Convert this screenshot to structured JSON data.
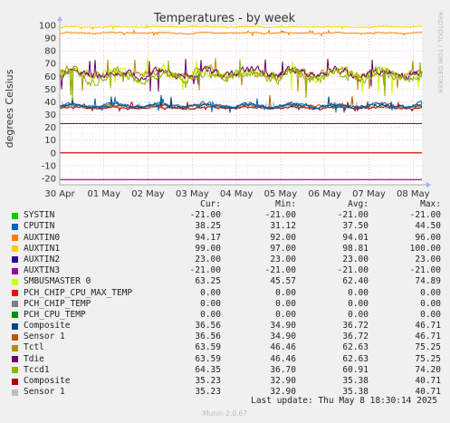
{
  "chart_data": {
    "type": "line",
    "title": "Temperatures - by week",
    "ylabel": "degrees Celsius",
    "side_label": "RRDTOOL / TOBI OETIKER",
    "ylim": [
      -25,
      100
    ],
    "yticks": [
      "-20",
      "-10",
      "0",
      "10",
      "20",
      "30",
      "40",
      "50",
      "60",
      "70",
      "80",
      "90",
      "100"
    ],
    "xticks": [
      "30 Apr",
      "01 May",
      "02 May",
      "03 May",
      "04 May",
      "05 May",
      "06 May",
      "07 May",
      "08 May"
    ],
    "grid": true,
    "series": [
      {
        "name": "SYSTIN",
        "color": "#00cc00",
        "cur": "-21.00",
        "min": "-21.00",
        "avg": "-21.00",
        "max": "-21.00"
      },
      {
        "name": "CPUTIN",
        "color": "#0066b3",
        "cur": "38.25",
        "min": "31.12",
        "avg": "37.50",
        "max": "44.50"
      },
      {
        "name": "AUXTIN0",
        "color": "#ff8000",
        "cur": "94.17",
        "min": "92.00",
        "avg": "94.01",
        "max": "96.00"
      },
      {
        "name": "AUXTIN1",
        "color": "#ffcc00",
        "cur": "99.00",
        "min": "97.00",
        "avg": "98.81",
        "max": "100.00"
      },
      {
        "name": "AUXTIN2",
        "color": "#330099",
        "cur": "23.00",
        "min": "23.00",
        "avg": "23.00",
        "max": "23.00"
      },
      {
        "name": "AUXTIN3",
        "color": "#990099",
        "cur": "-21.00",
        "min": "-21.00",
        "avg": "-21.00",
        "max": "-21.00"
      },
      {
        "name": "SMBUSMASTER 0",
        "color": "#ccff00",
        "cur": "63.25",
        "min": "45.57",
        "avg": "62.40",
        "max": "74.89"
      },
      {
        "name": "PCH_CHIP_CPU_MAX_TEMP",
        "color": "#ff0000",
        "cur": "0.00",
        "min": "0.00",
        "avg": "0.00",
        "max": "0.00"
      },
      {
        "name": "PCH_CHIP_TEMP",
        "color": "#808080",
        "cur": "0.00",
        "min": "0.00",
        "avg": "0.00",
        "max": "0.00"
      },
      {
        "name": "PCH_CPU_TEMP",
        "color": "#008f00",
        "cur": "0.00",
        "min": "0.00",
        "avg": "0.00",
        "max": "0.00"
      },
      {
        "name": "Composite",
        "color": "#00487d",
        "cur": "36.56",
        "min": "34.90",
        "avg": "36.72",
        "max": "46.71"
      },
      {
        "name": "Sensor 1",
        "color": "#b35a00",
        "cur": "36.56",
        "min": "34.90",
        "avg": "36.72",
        "max": "46.71"
      },
      {
        "name": "Tctl",
        "color": "#b38f00",
        "cur": "63.59",
        "min": "46.46",
        "avg": "62.63",
        "max": "75.25"
      },
      {
        "name": "Tdie",
        "color": "#6b006b",
        "cur": "63.59",
        "min": "46.46",
        "avg": "62.63",
        "max": "75.25"
      },
      {
        "name": "Tccd1",
        "color": "#8fb300",
        "cur": "64.35",
        "min": "36.70",
        "avg": "60.91",
        "max": "74.20"
      },
      {
        "name": "Composite",
        "color": "#b30000",
        "cur": "35.23",
        "min": "32.90",
        "avg": "35.38",
        "max": "40.71"
      },
      {
        "name": "Sensor 1",
        "color": "#bebebe",
        "cur": "35.23",
        "min": "32.90",
        "avg": "35.38",
        "max": "40.71"
      }
    ]
  },
  "legend_headers": {
    "cur": "Cur:",
    "min": "Min:",
    "avg": "Avg:",
    "max": "Max:"
  },
  "footer": {
    "last_update": "Last update: Thu May  8 18:30:14 2025",
    "version": "Munin 2.0.67"
  }
}
